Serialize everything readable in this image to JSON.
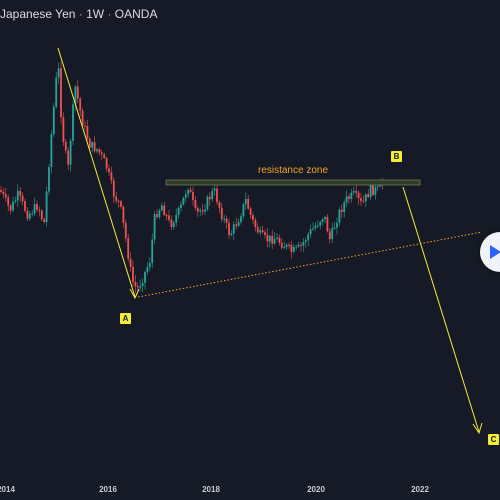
{
  "header": {
    "symbol": "Japanese Yen",
    "interval": "1W",
    "exchange": "OANDA",
    "separator": "·"
  },
  "x_axis": {
    "ticks": [
      "2014",
      "2016",
      "2018",
      "2020",
      "2022"
    ]
  },
  "annotations": {
    "resistance_label": "resistance zone",
    "point_a": "A",
    "point_b": "B",
    "point_c": "C"
  },
  "colors": {
    "background": "#151a26",
    "candle_up": "#26a69a",
    "candle_down": "#ef5350",
    "arrow": "#f5ec38",
    "trendline": "#f5a623",
    "resistance_zone": "#2a3a22"
  },
  "icons": {
    "play_button": "play-icon"
  },
  "chart_data": {
    "type": "candlestick",
    "title": "Japanese Yen · 1W · OANDA",
    "x_ticks": [
      "2014",
      "2016",
      "2018",
      "2020",
      "2022"
    ],
    "grid": false
  }
}
